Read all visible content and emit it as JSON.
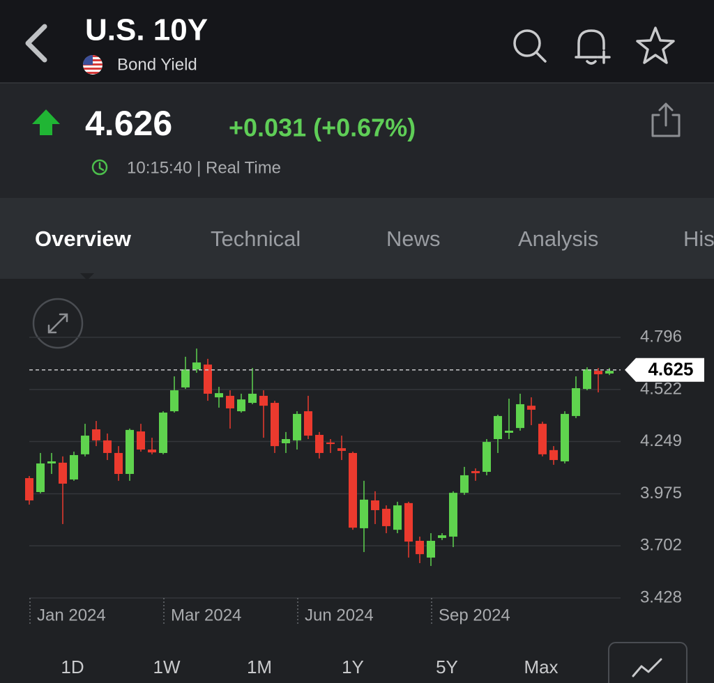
{
  "header": {
    "title": "U.S. 10Y",
    "subtitle": "Bond Yield"
  },
  "quote": {
    "price": "4.626",
    "change": "+0.031 (+0.67%)",
    "time": "10:15:40 | Real Time"
  },
  "tabs": [
    "Overview",
    "Technical",
    "News",
    "Analysis",
    "His"
  ],
  "ranges": [
    "1D",
    "1W",
    "1M",
    "1Y",
    "5Y",
    "Max"
  ],
  "chart_data": {
    "type": "candlestick",
    "categories": [
      "Jan 2024",
      null,
      null,
      null,
      null,
      null,
      null,
      null,
      null,
      null,
      null,
      null,
      "Mar 2024",
      null,
      null,
      null,
      null,
      null,
      null,
      null,
      null,
      null,
      null,
      null,
      "Jun 2024",
      null,
      null,
      null,
      null,
      null,
      null,
      null,
      null,
      null,
      null,
      null,
      "Sep 2024",
      null,
      null,
      null,
      null,
      null,
      null,
      null,
      null,
      null,
      null,
      null,
      null,
      null,
      null,
      null,
      null
    ],
    "open": [
      4.057,
      3.984,
      4.134,
      4.138,
      4.05,
      4.182,
      4.313,
      4.255,
      4.189,
      4.079,
      4.302,
      4.207,
      4.189,
      4.408,
      4.533,
      4.628,
      4.653,
      4.481,
      4.489,
      4.408,
      4.452,
      4.489,
      4.452,
      4.24,
      4.255,
      4.408,
      4.284,
      4.244,
      4.214,
      4.189,
      3.794,
      3.94,
      3.896,
      3.786,
      3.926,
      3.728,
      3.64,
      3.743,
      3.75,
      3.98,
      4.094,
      4.09,
      4.262,
      4.295,
      4.32,
      4.437,
      4.342,
      4.204,
      4.145,
      4.383,
      4.525,
      4.62,
      4.606
    ],
    "high": [
      4.068,
      4.189,
      4.189,
      4.171,
      4.196,
      4.342,
      4.357,
      4.291,
      4.225,
      4.317,
      4.342,
      4.269,
      4.408,
      4.591,
      4.694,
      4.737,
      4.683,
      4.536,
      4.518,
      4.5,
      4.635,
      4.518,
      4.463,
      4.299,
      4.408,
      4.489,
      4.299,
      4.262,
      4.28,
      4.196,
      4.043,
      3.988,
      3.914,
      3.933,
      3.933,
      3.75,
      3.768,
      3.768,
      3.988,
      4.116,
      4.108,
      4.262,
      4.39,
      4.474,
      4.5,
      4.481,
      4.353,
      4.225,
      4.408,
      4.591,
      4.639,
      4.635,
      4.635
    ],
    "low": [
      3.918,
      3.977,
      4.079,
      3.816,
      4.043,
      4.171,
      4.225,
      4.152,
      4.043,
      4.043,
      4.196,
      4.182,
      4.182,
      4.401,
      4.525,
      4.61,
      4.463,
      4.427,
      4.317,
      4.401,
      4.445,
      4.269,
      4.189,
      4.189,
      4.207,
      4.262,
      4.16,
      4.189,
      4.152,
      3.786,
      3.669,
      3.816,
      3.768,
      3.768,
      3.64,
      3.611,
      3.596,
      3.732,
      3.695,
      3.969,
      4.043,
      4.072,
      4.189,
      4.262,
      4.306,
      4.335,
      4.171,
      4.127,
      4.134,
      4.372,
      4.518,
      4.507,
      4.598
    ],
    "close": [
      3.94,
      4.134,
      4.145,
      4.028,
      4.178,
      4.28,
      4.255,
      4.189,
      4.079,
      4.31,
      4.207,
      4.192,
      4.401,
      4.518,
      4.628,
      4.664,
      4.5,
      4.503,
      4.423,
      4.47,
      4.5,
      4.437,
      4.225,
      4.262,
      4.394,
      4.28,
      4.189,
      4.236,
      4.2,
      3.797,
      3.944,
      3.889,
      3.805,
      3.914,
      3.724,
      3.658,
      3.728,
      3.757,
      3.98,
      4.072,
      4.083,
      4.247,
      4.383,
      4.306,
      4.445,
      4.416,
      4.182,
      4.152,
      4.394,
      4.529,
      4.628,
      4.602,
      4.62
    ],
    "up_color": "#5fd34e",
    "down_color": "#ec3a2e",
    "ylim": [
      3.428,
      4.796
    ],
    "yticks": [
      3.428,
      3.702,
      3.975,
      4.249,
      4.522,
      4.796
    ],
    "grid": true,
    "last_value": 4.625
  }
}
